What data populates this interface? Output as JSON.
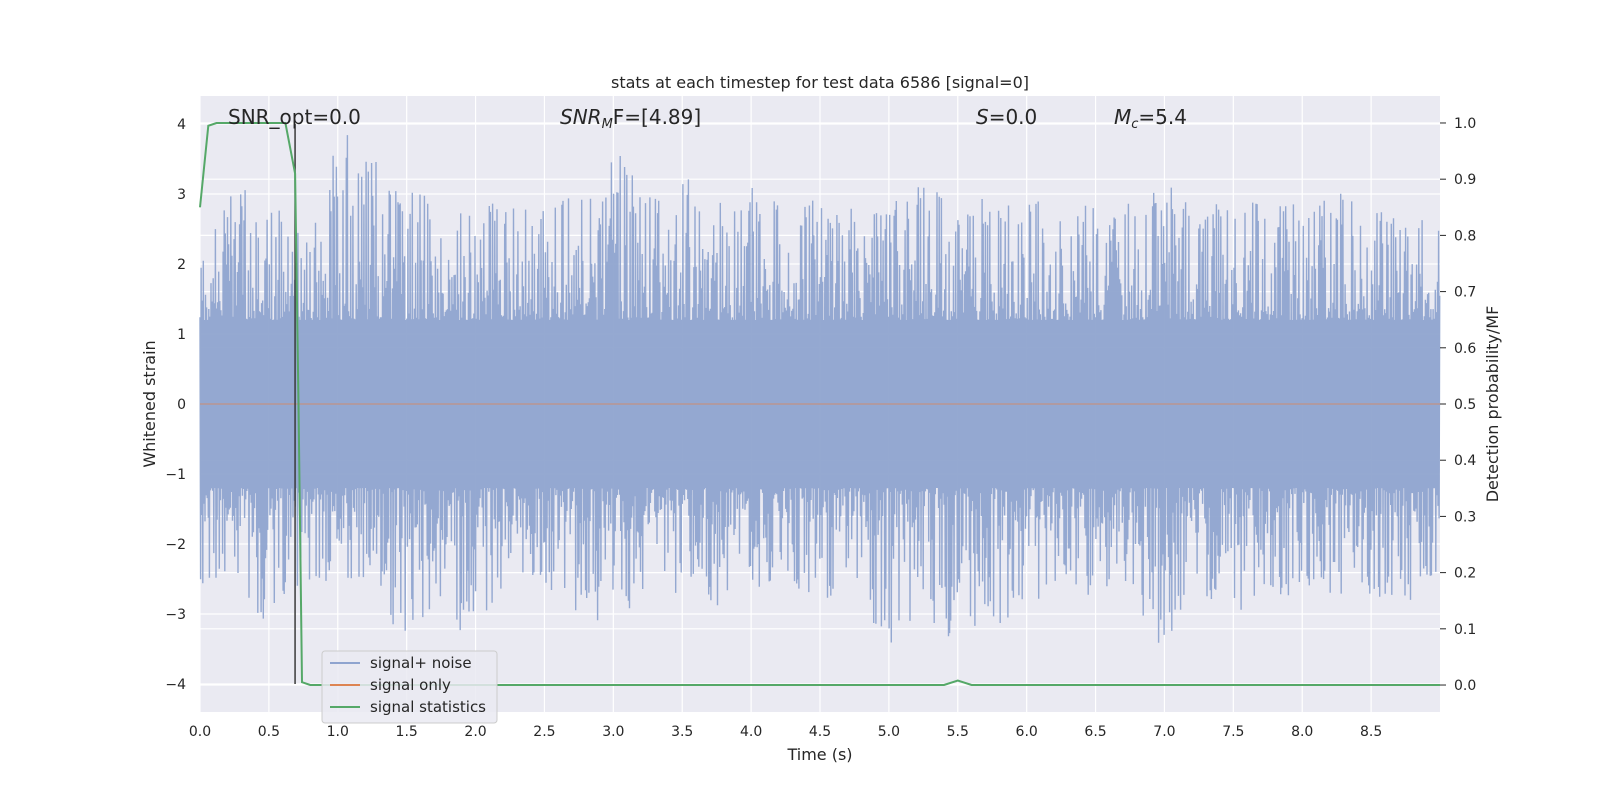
{
  "chart_data": {
    "type": "line",
    "title": "stats at each timestep for test data 6586 [signal=0]",
    "xlabel": "Time (s)",
    "ylabel": "Whitened strain",
    "y2label": "Detection probability/MF",
    "xlim": [
      0,
      9.0
    ],
    "ylim": [
      -4.4,
      4.4
    ],
    "y2lim": [
      -0.048,
      1.048
    ],
    "xticks": [
      "0.0",
      "0.5",
      "1.0",
      "1.5",
      "2.0",
      "2.5",
      "3.0",
      "3.5",
      "4.0",
      "4.5",
      "5.0",
      "5.5",
      "6.0",
      "6.5",
      "7.0",
      "7.5",
      "8.0",
      "8.5"
    ],
    "yticks": [
      "−4",
      "−3",
      "−2",
      "−1",
      "0",
      "1",
      "2",
      "3",
      "4"
    ],
    "y2ticks": [
      "0.0",
      "0.1",
      "0.2",
      "0.3",
      "0.4",
      "0.5",
      "0.6",
      "0.7",
      "0.8",
      "0.9",
      "1.0"
    ],
    "grid": true,
    "legend_placement": "lower-left",
    "annotations": {
      "snr_opt": "SNR_opt=0.0",
      "snr_mf_main": "SNR",
      "snr_mf_sub": "M",
      "snr_mf_rest": "F=[4.89]",
      "s_main": "S",
      "s_rest": "=0.0",
      "mc_main": "M",
      "mc_sub": "c",
      "mc_rest": "=5.4"
    },
    "marker_time": 0.69,
    "series": [
      {
        "name": "signal+ noise",
        "axis": "left",
        "color": "#8fa4cf",
        "envelope_high": [
          [
            0.0,
            2.1
          ],
          [
            0.25,
            3.1
          ],
          [
            0.5,
            3.0
          ],
          [
            0.75,
            2.4
          ],
          [
            1.05,
            4.0
          ],
          [
            1.25,
            3.5
          ],
          [
            1.5,
            3.2
          ],
          [
            1.75,
            2.9
          ],
          [
            2.0,
            3.0
          ],
          [
            2.25,
            2.8
          ],
          [
            2.5,
            2.8
          ],
          [
            2.75,
            3.1
          ],
          [
            3.05,
            3.55
          ],
          [
            3.25,
            3.0
          ],
          [
            3.5,
            3.3
          ],
          [
            3.75,
            2.9
          ],
          [
            4.0,
            3.1
          ],
          [
            4.25,
            3.0
          ],
          [
            4.5,
            2.9
          ],
          [
            4.75,
            2.8
          ],
          [
            5.0,
            2.9
          ],
          [
            5.25,
            3.2
          ],
          [
            5.5,
            2.8
          ],
          [
            5.75,
            3.0
          ],
          [
            6.0,
            3.0
          ],
          [
            6.25,
            2.8
          ],
          [
            6.5,
            2.9
          ],
          [
            6.75,
            2.9
          ],
          [
            7.0,
            3.2
          ],
          [
            7.25,
            2.7
          ],
          [
            7.5,
            3.0
          ],
          [
            7.75,
            2.8
          ],
          [
            8.0,
            2.9
          ],
          [
            8.25,
            3.1
          ],
          [
            8.5,
            2.8
          ],
          [
            8.75,
            2.6
          ],
          [
            9.0,
            2.7
          ]
        ],
        "envelope_low": [
          [
            0.0,
            -2.7
          ],
          [
            0.25,
            -2.4
          ],
          [
            0.5,
            -3.3
          ],
          [
            0.75,
            -2.5
          ],
          [
            1.0,
            -2.6
          ],
          [
            1.25,
            -2.8
          ],
          [
            1.5,
            -3.5
          ],
          [
            1.75,
            -2.8
          ],
          [
            1.95,
            -3.5
          ],
          [
            2.25,
            -2.4
          ],
          [
            2.5,
            -2.6
          ],
          [
            2.75,
            -3.0
          ],
          [
            3.05,
            -3.3
          ],
          [
            3.25,
            -2.6
          ],
          [
            3.5,
            -2.8
          ],
          [
            3.75,
            -2.9
          ],
          [
            4.0,
            -2.6
          ],
          [
            4.25,
            -2.7
          ],
          [
            4.5,
            -2.8
          ],
          [
            4.75,
            -2.7
          ],
          [
            5.0,
            -3.6
          ],
          [
            5.25,
            -2.9
          ],
          [
            5.4,
            -3.6
          ],
          [
            5.75,
            -3.2
          ],
          [
            6.0,
            -2.9
          ],
          [
            6.25,
            -2.7
          ],
          [
            6.5,
            -2.8
          ],
          [
            6.75,
            -2.7
          ],
          [
            6.95,
            -3.5
          ],
          [
            7.25,
            -2.8
          ],
          [
            7.35,
            -3.1
          ],
          [
            7.75,
            -2.8
          ],
          [
            8.0,
            -2.9
          ],
          [
            8.25,
            -2.7
          ],
          [
            8.5,
            -2.8
          ],
          [
            8.75,
            -2.9
          ],
          [
            9.0,
            -2.6
          ]
        ]
      },
      {
        "name": "signal only",
        "axis": "left",
        "color": "#dd8452",
        "values": [
          [
            0.0,
            0.0
          ],
          [
            9.0,
            0.0
          ]
        ]
      },
      {
        "name": "signal statistics",
        "axis": "right",
        "color": "#55a868",
        "values": [
          [
            0.0,
            0.85
          ],
          [
            0.06,
            0.995
          ],
          [
            0.12,
            1.0
          ],
          [
            0.2,
            1.0
          ],
          [
            0.3,
            1.0
          ],
          [
            0.4,
            1.0
          ],
          [
            0.5,
            1.0
          ],
          [
            0.62,
            1.0
          ],
          [
            0.69,
            0.91
          ],
          [
            0.715,
            0.5
          ],
          [
            0.74,
            0.005
          ],
          [
            0.8,
            0.0
          ],
          [
            1.0,
            0.0
          ],
          [
            2.0,
            0.0
          ],
          [
            3.0,
            0.0
          ],
          [
            4.0,
            0.0
          ],
          [
            5.0,
            0.0
          ],
          [
            5.4,
            0.0
          ],
          [
            5.5,
            0.008
          ],
          [
            5.6,
            0.0
          ],
          [
            6.0,
            0.0
          ],
          [
            7.0,
            0.0
          ],
          [
            8.0,
            0.0
          ],
          [
            9.0,
            0.0
          ]
        ]
      }
    ]
  }
}
